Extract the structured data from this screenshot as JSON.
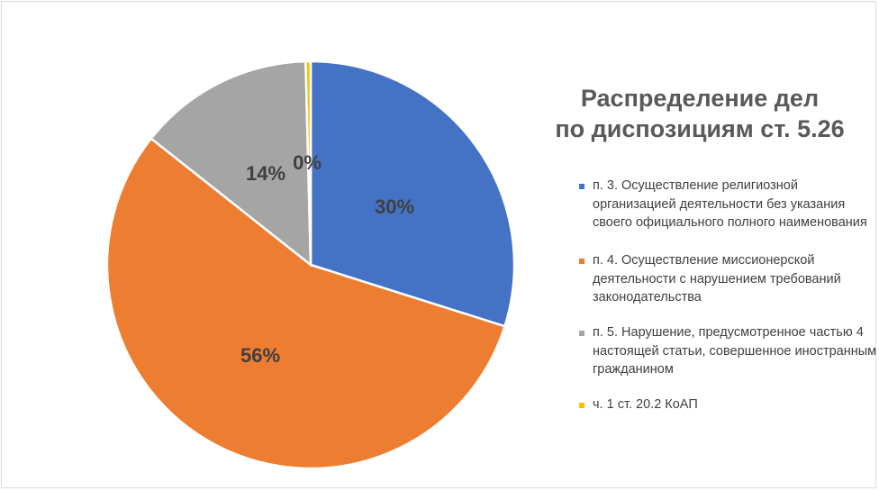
{
  "chart_data": {
    "type": "pie",
    "title": [
      "Распределение дел",
      "по диспозициям ст. 5.26"
    ],
    "slices": [
      {
        "label": "п. 3. Осуществление религиозной организацией деятельности без указания своего официального полного наименования",
        "value": 30,
        "data_label": "30%",
        "color": "#4472c4"
      },
      {
        "label": "п. 4. Осуществление миссионерской деятельности с нарушением требований законодательства",
        "value": 56,
        "data_label": "56%",
        "color": "#ed7d31"
      },
      {
        "label": "п. 5. Нарушение, предусмотренное частью 4 настоящей статьи, совершенное иностранным гражданином",
        "value": 14,
        "data_label": "14%",
        "color": "#a5a5a5"
      },
      {
        "label": "ч. 1 ст. 20.2 КоАП",
        "value": 0.4,
        "data_label": "0%",
        "color": "#ffc000"
      }
    ],
    "legend_position": "right"
  }
}
